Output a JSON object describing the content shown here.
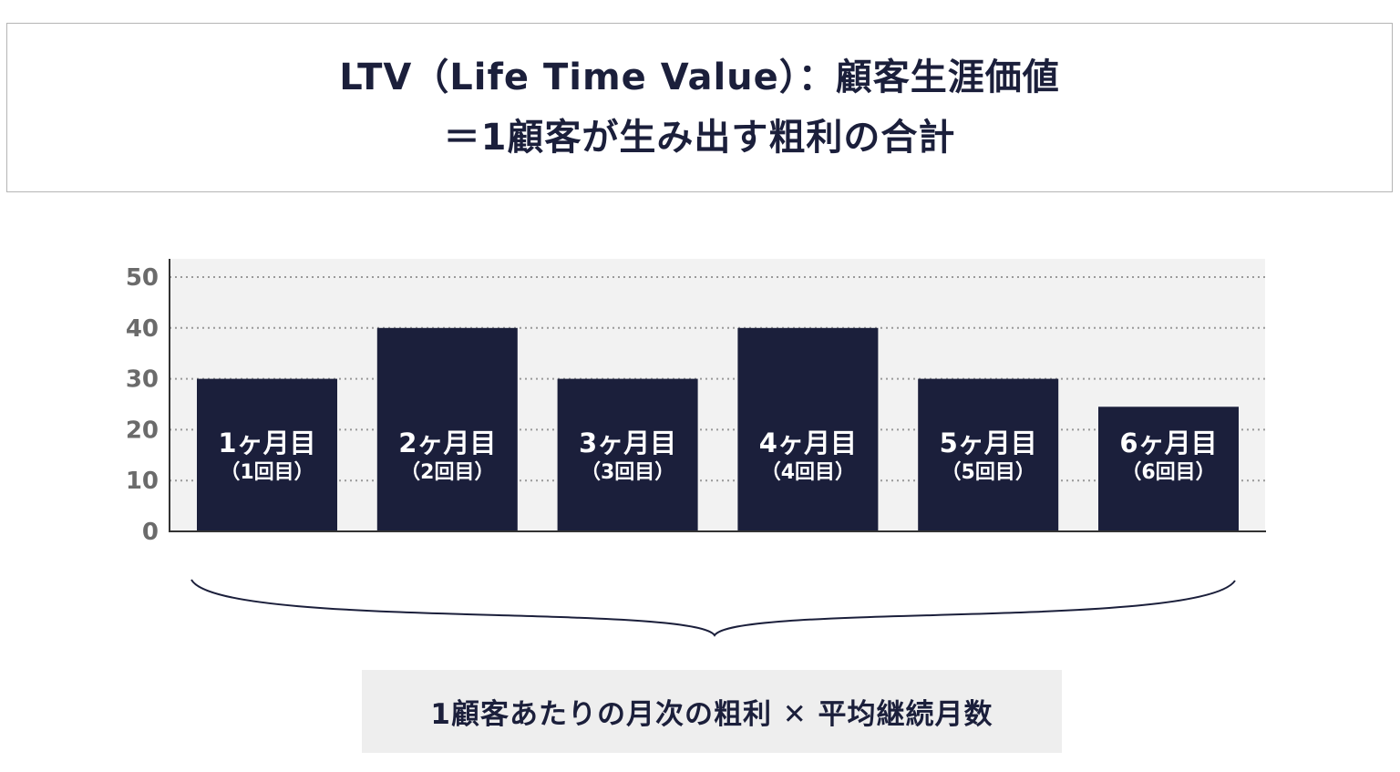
{
  "title": {
    "line1": "LTV（Life Time Value）：顧客生涯価値",
    "line2": "＝1顧客が生み出す粗利の合計"
  },
  "chart_data": {
    "type": "bar",
    "categories": [
      "1ヶ月目",
      "2ヶ月目",
      "3ヶ月目",
      "4ヶ月目",
      "5ヶ月目",
      "6ヶ月目"
    ],
    "sublabels": [
      "（1回目）",
      "（2回目）",
      "（3回目）",
      "（4回目）",
      "（5回目）",
      "（6回目）"
    ],
    "values": [
      30,
      40,
      30,
      40,
      30,
      24.5
    ],
    "ylim": [
      0,
      50
    ],
    "yticks": [
      0,
      10,
      20,
      30,
      40,
      50
    ],
    "grid": true,
    "xlabel": "",
    "ylabel": ""
  },
  "formula": "1顧客あたりの月次の粗利 ✕ 平均継続月数",
  "colors": {
    "bar": "#1b1f3b",
    "plot_bg": "#f2f2f2",
    "grid": "#9a9a9a",
    "brace": "#1b1f3b",
    "formula_bg": "#eeeeee"
  }
}
